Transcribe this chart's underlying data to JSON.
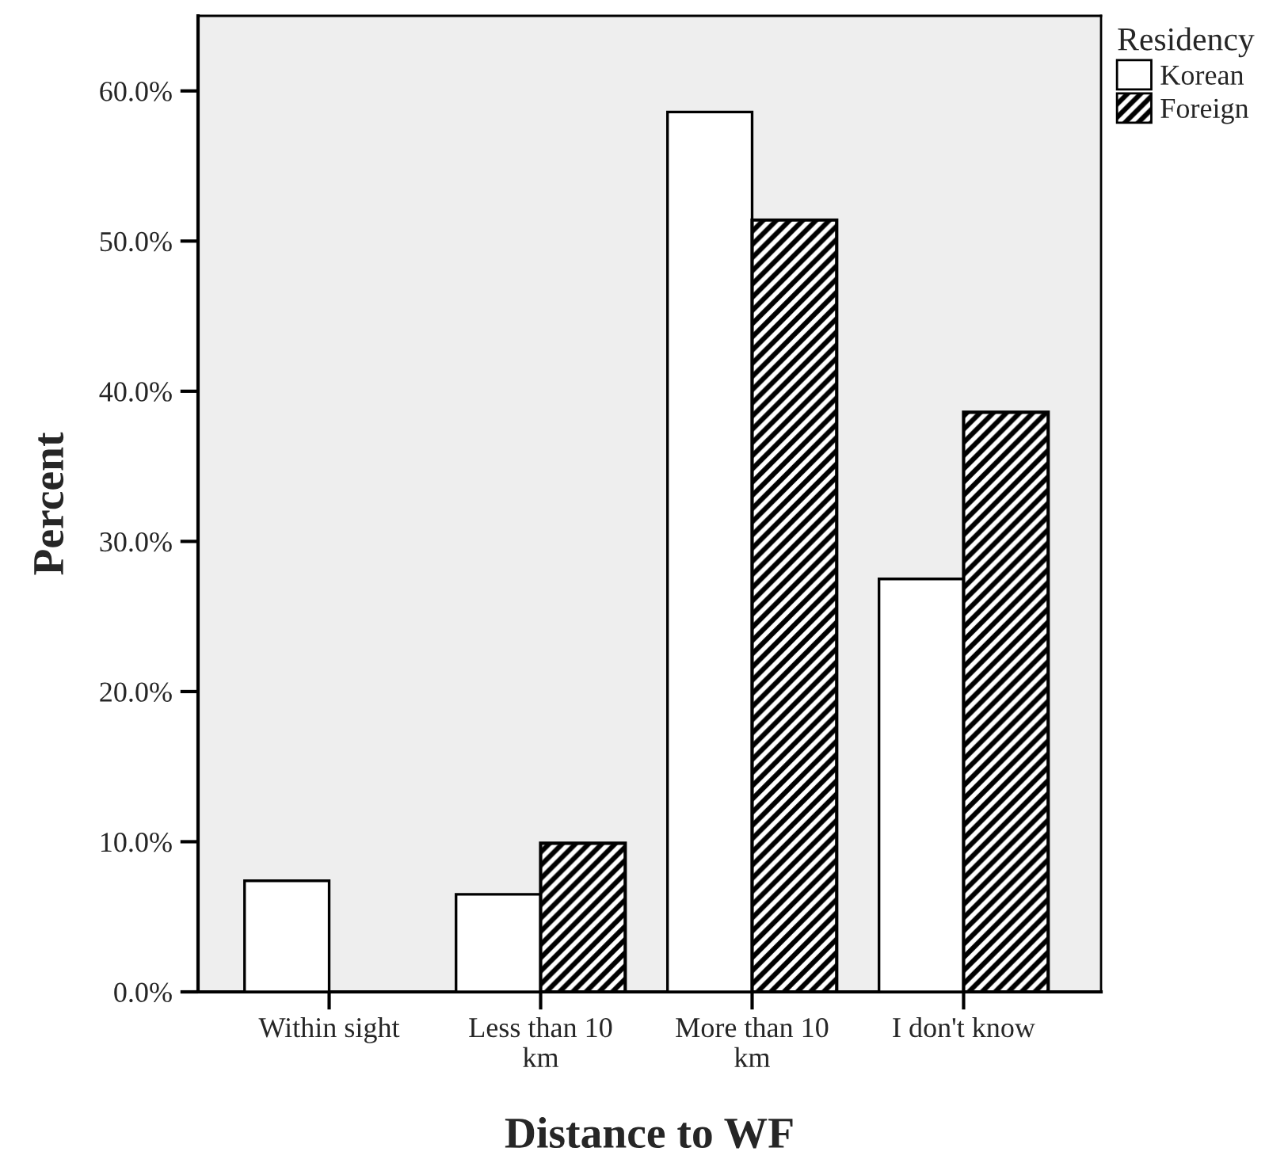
{
  "chart_data": {
    "type": "bar",
    "xlabel": "Distance to WF",
    "ylabel": "Percent",
    "legend_title": "Residency",
    "legend": "top right",
    "categories": [
      "Within sight",
      "Less than 10 km",
      "More than 10 km",
      "I don't know"
    ],
    "series": [
      {
        "name": "Korean",
        "color": "#ffffff",
        "values": [
          7.4,
          6.5,
          58.6,
          27.5
        ]
      },
      {
        "name": "Foreign",
        "color": "#000000",
        "values": [
          0.0,
          9.9,
          51.4,
          38.6
        ]
      }
    ],
    "ylim": [
      0,
      65
    ],
    "yticks": [
      {
        "value": 0,
        "label": "0.0%"
      },
      {
        "value": 10,
        "label": "10.0%"
      },
      {
        "value": 20,
        "label": "20.0%"
      },
      {
        "value": 30,
        "label": "30.0%"
      },
      {
        "value": 40,
        "label": "40.0%"
      },
      {
        "value": 50,
        "label": "50.0%"
      },
      {
        "value": 60,
        "label": "60.0%"
      }
    ],
    "grid": false
  }
}
